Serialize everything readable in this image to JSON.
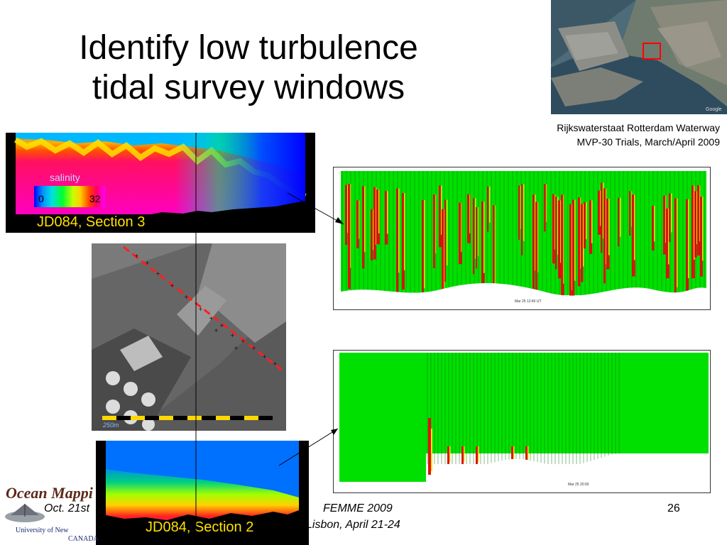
{
  "slide": {
    "title_line1": "Identify low turbulence",
    "title_line2": "tidal survey windows",
    "caption_line1": "Rijkswaterstaat Rotterdam Waterway",
    "caption_line2": "MVP-30 Trials, March/April 2009",
    "section_top_label": "JD084, Section 3",
    "section_bottom_label": "JD084, Section 2",
    "colorbar": {
      "title": "salinity",
      "min": "0",
      "max": "32"
    },
    "scale_bar_label": "250m",
    "map_watermark": "Google",
    "footer": {
      "date": "Oct. 21st",
      "conference": "FEMME 2009",
      "place": "Lisbon, April 21-24",
      "page_number": "26"
    },
    "logo": {
      "name": "Ocean Mappi",
      "university": "University of New",
      "country": "CANADA"
    }
  },
  "colors": {
    "label_yellow": "#ffe000",
    "ping_green": "#00e000",
    "ping_red": "#e01010",
    "marker_red": "#ff0000"
  },
  "panel_top": {
    "axis_note": "Mar 25 12:40 UT"
  },
  "panel_bottom": {
    "axis_note": "Mar 25 20:00"
  }
}
